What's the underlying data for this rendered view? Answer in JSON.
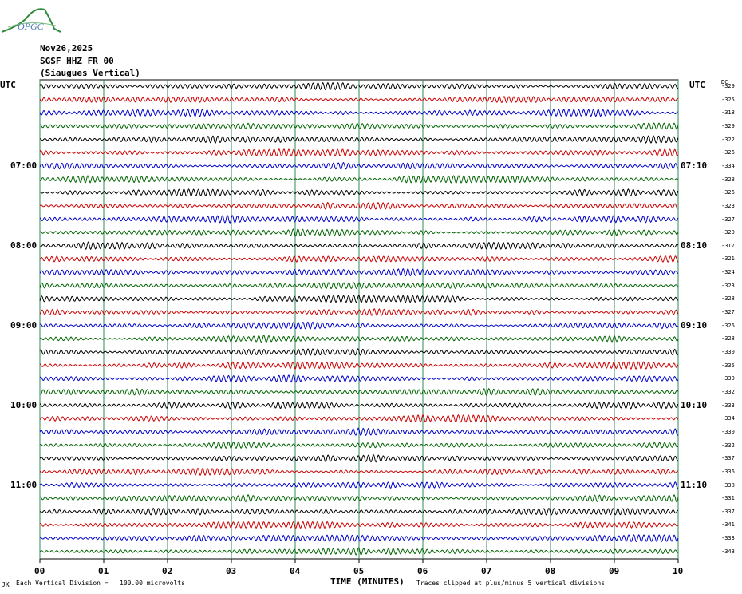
{
  "logo": {
    "text": "OPGC",
    "color": "#2e8b3a",
    "text_color": "#4a7ab0"
  },
  "header": {
    "date": "Nov26,2025",
    "station": "SGSF HHZ FR 00",
    "location": "(Siaugues Vertical)"
  },
  "left_tz": "UTC",
  "right_tz": "UTC",
  "dc_label": "DC",
  "colors": {
    "trace_cycle": [
      "#000000",
      "#cc0000",
      "#0000cc",
      "#006400"
    ],
    "grid": "#2e8b57"
  },
  "chart_data": {
    "type": "line",
    "title": "",
    "xlabel": "TIME (MINUTES)",
    "x_ticks": [
      "00",
      "01",
      "02",
      "03",
      "04",
      "05",
      "06",
      "07",
      "08",
      "09",
      "10"
    ],
    "xlim": [
      0,
      10
    ],
    "grid": true,
    "left_hour_labels": [
      "07:00",
      "08:00",
      "09:00",
      "10:00",
      "11:00"
    ],
    "right_hour_labels": [
      "07:10",
      "08:10",
      "09:10",
      "10:10",
      "11:10"
    ],
    "dc_offsets": [
      -329,
      -325,
      -318,
      -329,
      -322,
      -326,
      -334,
      -328,
      -326,
      -323,
      -327,
      -320,
      -317,
      -321,
      -324,
      -323,
      -328,
      -327,
      -326,
      -328,
      -330,
      -335,
      -330,
      -332,
      -333,
      -334,
      -330,
      -332,
      -337,
      -336,
      -338,
      -331,
      -337,
      -341,
      -333,
      -348
    ]
  },
  "footer": {
    "scale_prefix": "Each Vertical Division =",
    "scale_value": "100.00 microvolts",
    "clip_note": "Traces clipped at plus/minus 5 vertical divisions",
    "corner_mark": "JK"
  }
}
